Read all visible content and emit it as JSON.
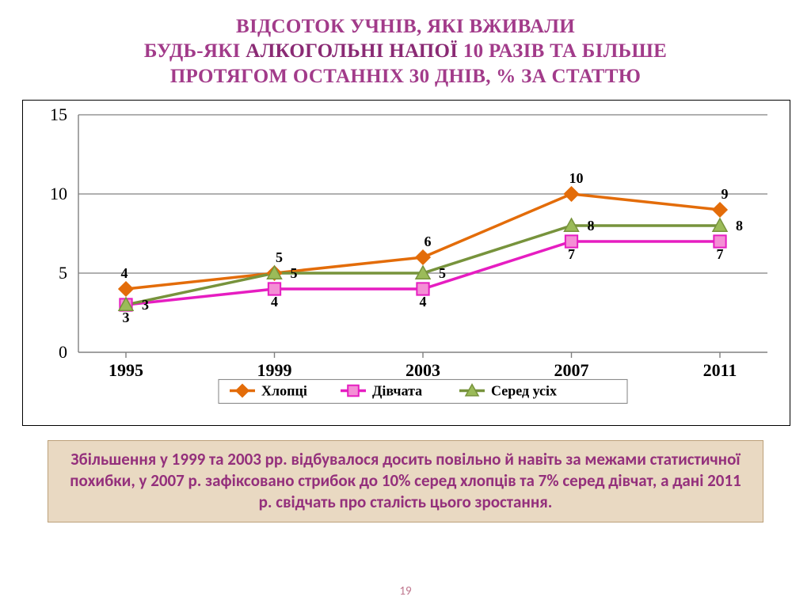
{
  "page_number": "19",
  "title": {
    "line1": "ВІДСОТОК УЧНІВ, ЯКІ ВЖИВАЛИ",
    "line2_pre": "БУДЬ-ЯКІ ",
    "line2_strong": "АЛКОГОЛЬНІ НАПОЇ",
    "line2_post": " 10 РАЗІВ ТА БІЛЬШЕ",
    "line3": "ПРОТЯГОМ ОСТАННІХ 30 ДНІВ, % ЗА СТАТТЮ",
    "title_color": "#a23b8a",
    "title_strong_color": "#8a2a74",
    "title_fontsize": 25
  },
  "caption": {
    "text": "Збільшення у 1999 та 2003 рр. відбувалося досить повільно й навіть за межами статистичної похибки, у 2007 р. зафіксовано стрибок до 10% серед хлопців та 7% серед дівчат, а дані 2011 р. свідчать про сталість цього зростання.",
    "bg_color": "#e9d9c2",
    "border_color": "#bca07a",
    "text_color": "#94307c",
    "fontsize": 21
  },
  "chart": {
    "type": "line",
    "background_color": "#ffffff",
    "plot_border_color": "#000000",
    "grid_color": "#808080",
    "font_family": "Times New Roman",
    "axis_fontsize": 22,
    "data_label_fontsize": 18,
    "legend_fontsize": 18,
    "line_width": 3.5,
    "marker_size": 9,
    "categories": [
      "1995",
      "1999",
      "2003",
      "2007",
      "2011"
    ],
    "ylim": [
      0,
      15
    ],
    "ytick_step": 5,
    "series": [
      {
        "name": "Хлопці",
        "color": "#e36c09",
        "marker": "diamond",
        "marker_fill": "#e36c09",
        "values": [
          4,
          5,
          6,
          10,
          9
        ],
        "label_offset": "above"
      },
      {
        "name": "Дівчата",
        "color": "#e61dc1",
        "marker": "square",
        "marker_fill": "#f48fd5",
        "values": [
          3,
          4,
          4,
          7,
          7
        ],
        "label_offset": "below"
      },
      {
        "name": "Серед усіх",
        "color": "#77933c",
        "marker": "triangle",
        "marker_fill": "#9bbb59",
        "values": [
          3,
          5,
          5,
          8,
          8
        ],
        "label_offset": "right"
      }
    ]
  }
}
